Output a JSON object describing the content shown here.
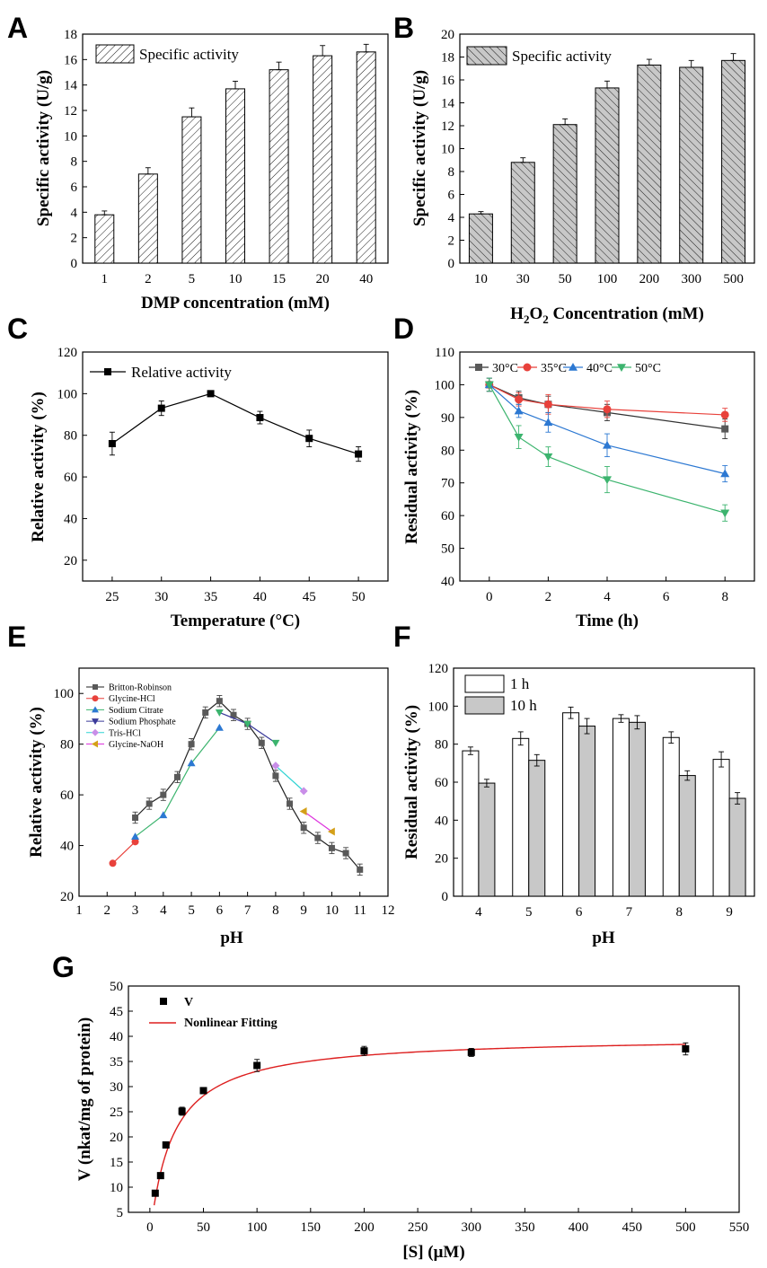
{
  "colors": {
    "black": "#000000",
    "gray_marker": "#595959",
    "red": "#e8413b",
    "blue": "#2c78d2",
    "green": "#3cb46e",
    "navy": "#3a3a9a",
    "cyan": "#2fd3d3",
    "purple": "#c98ee8",
    "magenta": "#dd33dd",
    "orange": "#d4a018",
    "bar_gray": "#c8c8c8",
    "fit_red": "#dd1f1f"
  },
  "chart_data": [
    {
      "id": "A",
      "panel_label": "A",
      "type": "bar",
      "legend": [
        "Specific activity"
      ],
      "categories": [
        "1",
        "2",
        "5",
        "10",
        "15",
        "20",
        "40"
      ],
      "values": [
        3.8,
        7.0,
        11.5,
        13.7,
        15.2,
        16.3,
        16.6
      ],
      "errors": [
        0.3,
        0.5,
        0.7,
        0.6,
        0.6,
        0.8,
        0.6
      ],
      "xlabel": "DMP concentration (mM)",
      "ylabel": "Specific activity (U/g)",
      "ylim": [
        0,
        18
      ],
      "yticks": [
        "0",
        "2",
        "4",
        "6",
        "8",
        "10",
        "12",
        "14",
        "16",
        "18"
      ]
    },
    {
      "id": "B",
      "panel_label": "B",
      "type": "bar",
      "legend": [
        "Specific activity"
      ],
      "categories": [
        "10",
        "30",
        "50",
        "100",
        "200",
        "300",
        "500"
      ],
      "values": [
        4.3,
        8.8,
        12.1,
        15.3,
        17.3,
        17.1,
        17.7
      ],
      "errors": [
        0.2,
        0.4,
        0.5,
        0.6,
        0.5,
        0.6,
        0.6
      ],
      "xlabel": "H2O2 Concentration (mM)",
      "ylabel": "Specific activity (U/g)",
      "ylim": [
        0,
        20
      ],
      "yticks": [
        "0",
        "2",
        "4",
        "6",
        "8",
        "10",
        "12",
        "14",
        "16",
        "18",
        "20"
      ]
    },
    {
      "id": "C",
      "panel_label": "C",
      "type": "line",
      "legend": [
        "Relative activity"
      ],
      "x": [
        25,
        30,
        35,
        40,
        45,
        50
      ],
      "y": [
        76,
        93,
        100,
        88.5,
        78.5,
        71
      ],
      "errors": [
        5.5,
        3.5,
        0,
        3,
        4,
        3.5
      ],
      "xlabel": "Temperature (°C)",
      "ylabel": "Relative activity (%)",
      "xlim": [
        22,
        53
      ],
      "ylim": [
        10,
        120
      ],
      "xticks": [
        "25",
        "30",
        "35",
        "40",
        "45",
        "50"
      ],
      "yticks": [
        "20",
        "40",
        "60",
        "80",
        "100",
        "120"
      ]
    },
    {
      "id": "D",
      "panel_label": "D",
      "type": "line",
      "x": [
        0,
        1,
        2,
        4,
        8
      ],
      "series": [
        {
          "name": "30°C",
          "values": [
            100,
            96,
            94,
            91.5,
            86.5
          ],
          "errors": [
            2,
            2,
            2.5,
            2.5,
            3
          ]
        },
        {
          "name": "35°C",
          "values": [
            100,
            95.5,
            94,
            92.5,
            90.8
          ],
          "errors": [
            2,
            2,
            3,
            2.5,
            2
          ]
        },
        {
          "name": "40°C",
          "values": [
            100,
            92,
            88.5,
            81.5,
            72.8
          ],
          "errors": [
            2,
            2,
            3,
            3.5,
            2.5
          ]
        },
        {
          "name": "50°C",
          "values": [
            100,
            84,
            78,
            71,
            60.8
          ],
          "errors": [
            2,
            3.5,
            3,
            4,
            2.5
          ]
        }
      ],
      "xlabel": "Time (h)",
      "ylabel": "Residual activity (%)",
      "xlim": [
        -1,
        9
      ],
      "ylim": [
        40,
        110
      ],
      "xticks": [
        "0",
        "2",
        "4",
        "6",
        "8"
      ],
      "yticks": [
        "40",
        "50",
        "60",
        "70",
        "80",
        "90",
        "100",
        "110"
      ]
    },
    {
      "id": "E",
      "panel_label": "E",
      "type": "line",
      "series": [
        {
          "name": "Britton-Robinson",
          "x": [
            3,
            3.5,
            4,
            4.5,
            5,
            5.5,
            6,
            6.5,
            7,
            7.5,
            8,
            8.5,
            9,
            9.5,
            10,
            10.5,
            11
          ],
          "values": [
            51,
            56.5,
            60,
            67,
            80,
            92.5,
            97,
            91.5,
            88,
            80.5,
            67.5,
            56.5,
            47,
            43,
            39,
            37,
            30.5
          ]
        },
        {
          "name": "Glycine-HCl",
          "x": [
            2.2,
            3
          ],
          "values": [
            33,
            41.5
          ]
        },
        {
          "name": "Sodium Citrate",
          "x": [
            3,
            4,
            5,
            6
          ],
          "values": [
            43.5,
            52,
            72.5,
            86.5
          ]
        },
        {
          "name": "Sodium Phosphate",
          "x": [
            6,
            7,
            8
          ],
          "values": [
            92.5,
            88,
            80.5
          ]
        },
        {
          "name": "Tris-HCl",
          "x": [
            8,
            9
          ],
          "values": [
            71.5,
            61.5
          ]
        },
        {
          "name": "Glycine-NaOH",
          "x": [
            9,
            10
          ],
          "values": [
            53.5,
            45.5
          ]
        }
      ],
      "xlabel": "pH",
      "ylabel": "Relative activity (%)",
      "xlim": [
        1,
        12
      ],
      "ylim": [
        20,
        110
      ],
      "xticks": [
        "1",
        "2",
        "3",
        "4",
        "5",
        "6",
        "7",
        "8",
        "9",
        "10",
        "11",
        "12"
      ],
      "yticks": [
        "20",
        "40",
        "60",
        "80",
        "100"
      ]
    },
    {
      "id": "F",
      "panel_label": "F",
      "type": "bar",
      "categories": [
        "4",
        "5",
        "6",
        "7",
        "8",
        "9"
      ],
      "series": [
        {
          "name": "1 h",
          "values": [
            76.5,
            83,
            96.5,
            93.5,
            83.5,
            72
          ],
          "errors": [
            2,
            3.5,
            3,
            2,
            3,
            4
          ]
        },
        {
          "name": "10 h",
          "values": [
            59.5,
            71.5,
            89.5,
            91.5,
            63.5,
            51.5
          ],
          "errors": [
            2,
            3,
            4,
            3.5,
            2.5,
            3
          ]
        }
      ],
      "xlabel": "pH",
      "ylabel": "Residual activity (%)",
      "ylim": [
        0,
        120
      ],
      "yticks": [
        "0",
        "20",
        "40",
        "60",
        "80",
        "100",
        "120"
      ]
    },
    {
      "id": "G",
      "panel_label": "G",
      "type": "scatter",
      "series": [
        {
          "name": "V",
          "x": [
            5,
            10,
            15,
            30,
            50,
            100,
            200,
            300,
            500
          ],
          "values": [
            8.8,
            12.3,
            18.4,
            25.1,
            29.2,
            34.2,
            37.1,
            36.8,
            37.5
          ],
          "errors": [
            0.4,
            0.5,
            0.6,
            0.8,
            0.6,
            1.2,
            0.9,
            0.8,
            1.2
          ]
        }
      ],
      "fit": {
        "name": "Nonlinear Fitting",
        "vmax": 40,
        "km": 21
      },
      "xlabel": "[S] (μM)",
      "ylabel": "V (nkat/mg of protein)",
      "xlim": [
        -20,
        550
      ],
      "ylim": [
        5,
        50
      ],
      "xticks": [
        "0",
        "50",
        "100",
        "150",
        "200",
        "250",
        "300",
        "350",
        "400",
        "450",
        "500",
        "550"
      ],
      "yticks": [
        "5",
        "10",
        "15",
        "20",
        "25",
        "30",
        "35",
        "40",
        "45",
        "50"
      ]
    }
  ]
}
